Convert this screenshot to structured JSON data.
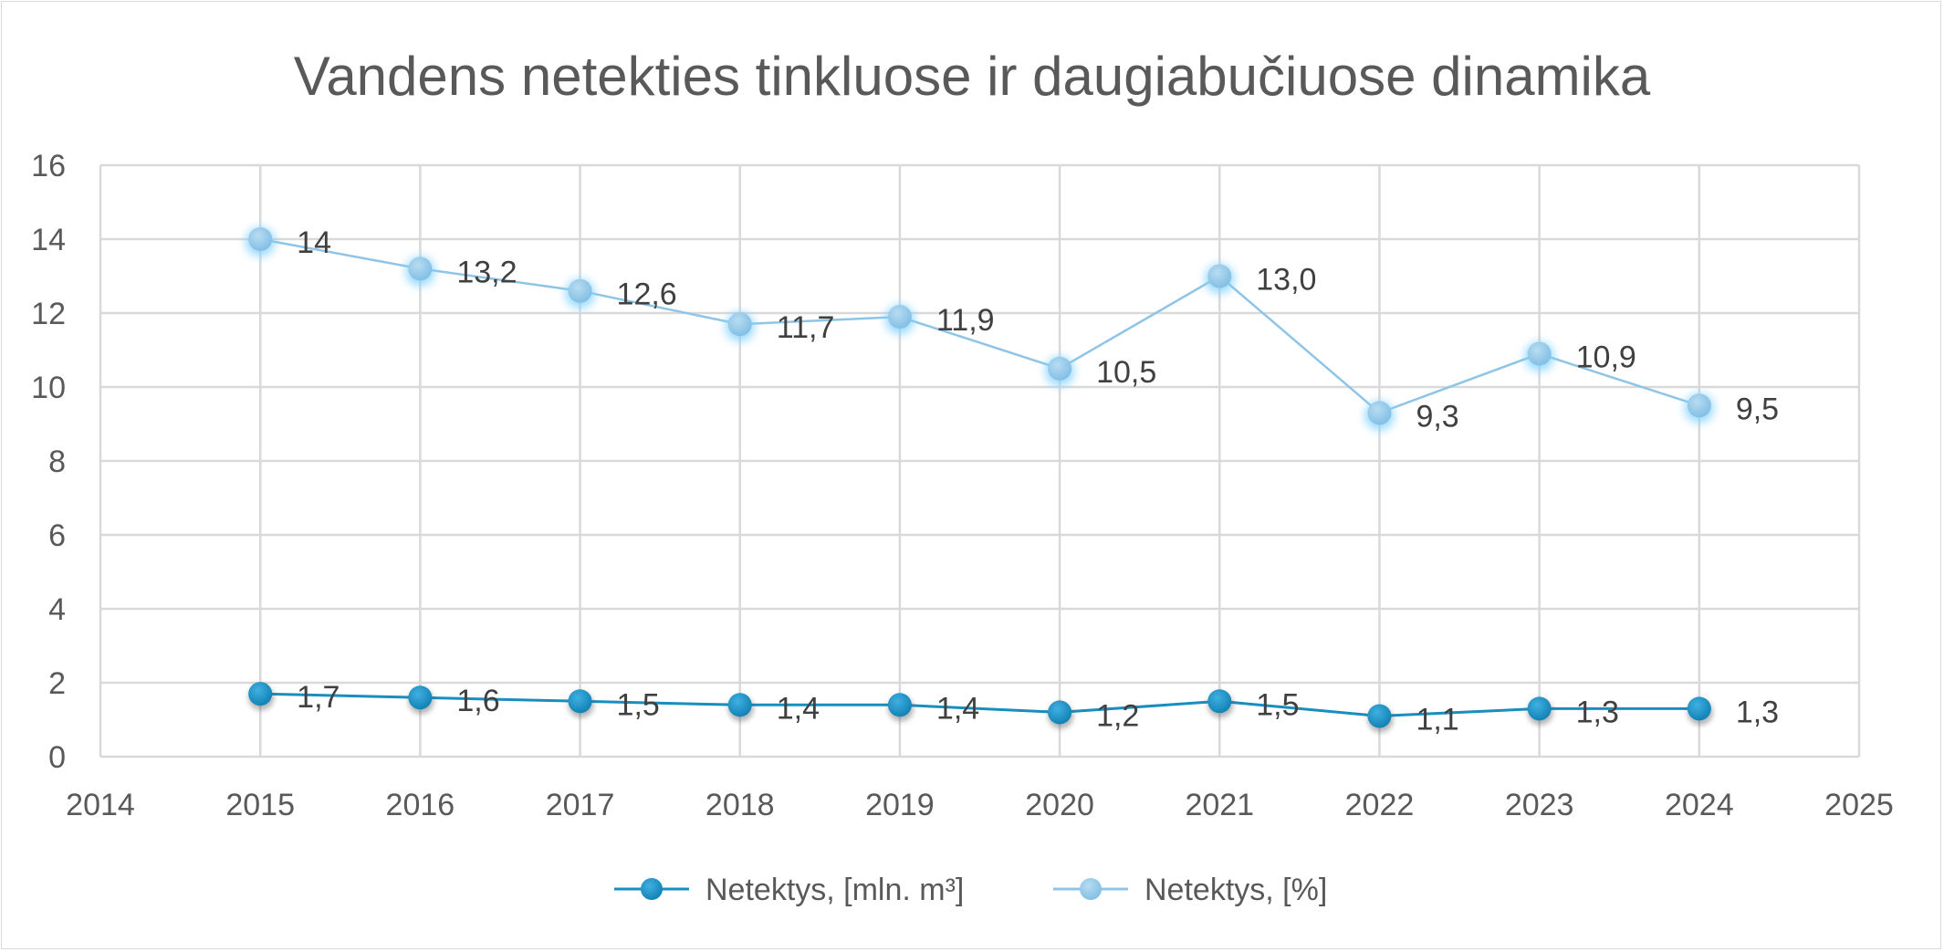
{
  "chart_data": {
    "type": "scatter",
    "title": "Vandens netekties tinkluose ir daugiabučiuose dinamika",
    "xlabel": "",
    "ylabel": "",
    "xlim": [
      2014,
      2025
    ],
    "ylim": [
      0,
      16
    ],
    "x_ticks": [
      "2014",
      "2015",
      "2016",
      "2017",
      "2018",
      "2019",
      "2020",
      "2021",
      "2022",
      "2023",
      "2024",
      "2025"
    ],
    "y_ticks": [
      "0",
      "2",
      "4",
      "6",
      "8",
      "10",
      "12",
      "14",
      "16"
    ],
    "grid": true,
    "legend_position": "bottom",
    "x": [
      2015,
      2016,
      2017,
      2018,
      2019,
      2020,
      2021,
      2022,
      2023,
      2024
    ],
    "series": [
      {
        "name": "Netektys, [mln. m³]",
        "values": [
          1.7,
          1.6,
          1.5,
          1.4,
          1.4,
          1.2,
          1.5,
          1.1,
          1.3,
          1.3
        ],
        "labels": [
          "1,7",
          "1,6",
          "1,5",
          "1,4",
          "1,4",
          "1,2",
          "1,5",
          "1,1",
          "1,3",
          "1,3"
        ],
        "color": "#1a8dbf"
      },
      {
        "name": "Netektys, [%]",
        "values": [
          14,
          13.2,
          12.6,
          11.7,
          11.9,
          10.5,
          13.0,
          9.3,
          10.9,
          9.5
        ],
        "labels": [
          "14",
          "13,2",
          "12,6",
          "11,7",
          "11,9",
          "10,5",
          "13,0",
          "9,3",
          "10,9",
          "9,5"
        ],
        "color": "#8ec5e6"
      }
    ]
  }
}
